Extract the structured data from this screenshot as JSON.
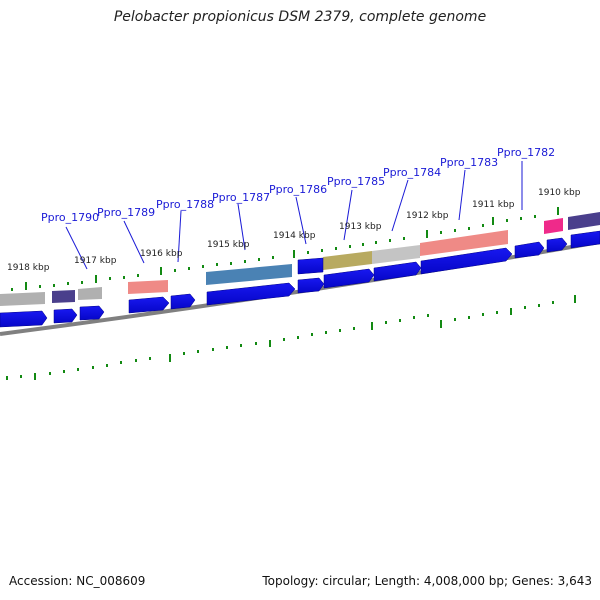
{
  "title": "Pelobacter propionicus DSM 2379, complete genome",
  "footer": {
    "accession": "Accession: NC_008609",
    "stats": "Topology: circular; Length: 4,008,000 bp; Genes: 3,643"
  },
  "gene_labels": [
    "Ppro_1790",
    "Ppro_1789",
    "Ppro_1788",
    "Ppro_1787",
    "Ppro_1786",
    "Ppro_1785",
    "Ppro_1784",
    "Ppro_1783",
    "Ppro_1782"
  ],
  "kbp_labels": [
    "1918 kbp",
    "1917 kbp",
    "1916 kbp",
    "1915 kbp",
    "1914 kbp",
    "1913 kbp",
    "1912 kbp",
    "1911 kbp",
    "1910 kbp"
  ],
  "colors": {
    "gene_arrow": "#0a0ae8",
    "backbone": "#808080",
    "tick": "#138a13",
    "label": "#1a1ad6",
    "cog_gray": "#b0b0b0",
    "cog_indigo": "#4a3f8c",
    "cog_salmon": "#ef8a86",
    "cog_steelblue": "#4a82b4",
    "cog_olive": "#b8aa60",
    "cog_pink": "#ef2a8a"
  }
}
